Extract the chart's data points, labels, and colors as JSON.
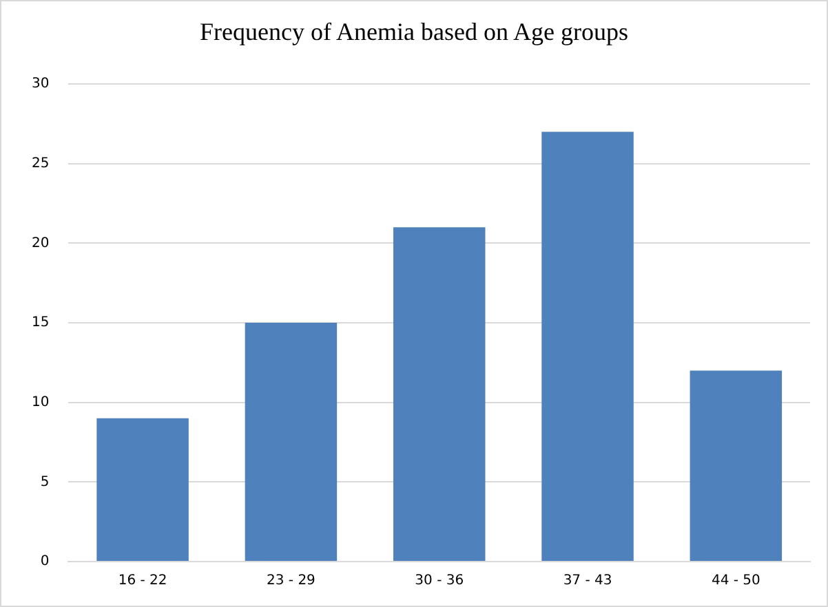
{
  "chart_data": {
    "type": "bar",
    "title": "Frequency of Anemia based on Age groups",
    "categories": [
      "16 - 22",
      "23 - 29",
      "30 - 36",
      "37 - 43",
      "44 - 50"
    ],
    "values": [
      9,
      15,
      21,
      27,
      12
    ],
    "color": "#4f81bd",
    "ylim": [
      0,
      30
    ],
    "yticks": [
      0,
      5,
      10,
      15,
      20,
      25,
      30
    ],
    "grid": "y",
    "legend": false
  }
}
